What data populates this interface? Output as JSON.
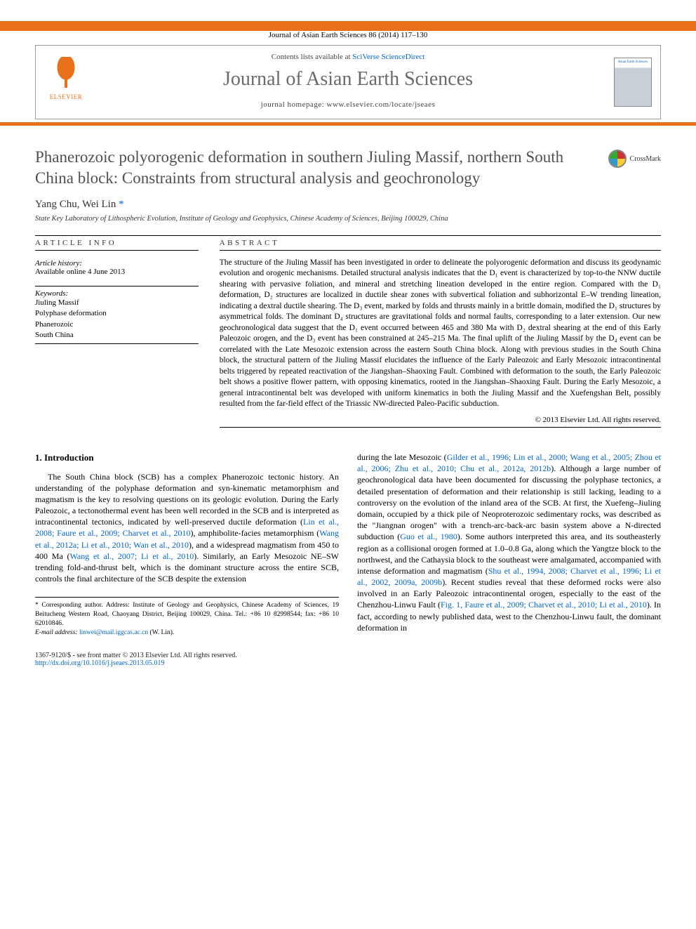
{
  "citation": "Journal of Asian Earth Sciences 86 (2014) 117–130",
  "header": {
    "contents_prefix": "Contents lists available at ",
    "contents_link": "SciVerse ScienceDirect",
    "journal_name": "Journal of Asian Earth Sciences",
    "homepage_label": "journal homepage: www.elsevier.com/locate/jseaes",
    "publisher": "ELSEVIER",
    "thumb_label": "Asian Earth Sciences"
  },
  "title": "Phanerozoic polyorogenic deformation in southern Jiuling Massif, northern South China block: Constraints from structural analysis and geochronology",
  "crossmark": "CrossMark",
  "authors": "Yang Chu, Wei Lin",
  "author_mark": "*",
  "affiliation": "State Key Laboratory of Lithospheric Evolution, Institute of Geology and Geophysics, Chinese Academy of Sciences, Beijing 100029, China",
  "article_info": {
    "label": "ARTICLE INFO",
    "history_label": "Article history:",
    "history_text": "Available online 4 June 2013",
    "keywords_label": "Keywords:",
    "keywords": [
      "Jiuling Massif",
      "Polyphase deformation",
      "Phanerozoic",
      "South China"
    ]
  },
  "abstract": {
    "label": "ABSTRACT",
    "text": "The structure of the Jiuling Massif has been investigated in order to delineate the polyorogenic deformation and discuss its geodynamic evolution and orogenic mechanisms. Detailed structural analysis indicates that the D₁ event is characterized by top-to-the NNW ductile shearing with pervasive foliation, and mineral and stretching lineation developed in the entire region. Compared with the D₁ deformation, D₂ structures are localized in ductile shear zones with subvertical foliation and subhorizontal E–W trending lineation, indicating a dextral ductile shearing. The D₃ event, marked by folds and thrusts mainly in a brittle domain, modified the D₁ structures by asymmetrical folds. The dominant D₄ structures are gravitational folds and normal faults, corresponding to a later extension. Our new geochronological data suggest that the D₁ event occurred between 465 and 380 Ma with D₂ dextral shearing at the end of this Early Paleozoic orogen, and the D₃ event has been constrained at 245–215 Ma. The final uplift of the Jiuling Massif by the D₄ event can be correlated with the Late Mesozoic extension across the eastern South China block. Along with previous studies in the South China block, the structural pattern of the Jiuling Massif elucidates the influence of the Early Paleozoic and Early Mesozoic intracontinental belts triggered by repeated reactivation of the Jiangshan–Shaoxing Fault. Combined with deformation to the south, the Early Paleozoic belt shows a positive flower pattern, with opposing kinematics, rooted in the Jiangshan–Shaoxing Fault. During the Early Mesozoic, a general intracontinental belt was developed with uniform kinematics in both the Jiuling Massif and the Xuefengshan Belt, possibly resulted from the far-field effect of the Triassic NW-directed Paleo-Pacific subduction.",
    "copyright": "© 2013 Elsevier Ltd. All rights reserved."
  },
  "intro": {
    "heading": "1. Introduction",
    "col1_part1": "The South China block (SCB) has a complex Phanerozoic tectonic history. An understanding of the polyphase deformation and syn-kinematic metamorphism and magmatism is the key to resolving questions on its geologic evolution. During the Early Paleozoic, a tectonothermal event has been well recorded in the SCB and is interpreted as intracontinental tectonics, indicated by well-preserved ductile deformation (",
    "col1_ref1": "Lin et al., 2008; Faure et al., 2009; Charvet et al., 2010",
    "col1_part2": "), amphibolite-facies metamorphism (",
    "col1_ref2": "Wang et al., 2012a; Li et al., 2010; Wan et al., 2010",
    "col1_part3": "), and a widespread magmatism from 450 to 400 Ma (",
    "col1_ref3": "Wang et al., 2007; Li et al., 2010",
    "col1_part4": "). Similarly, an Early Mesozoic NE–SW trending fold-and-thrust belt, which is the dominant structure across the entire SCB, controls the final architecture of the SCB despite the extension",
    "col2_part1": "during the late Mesozoic (",
    "col2_ref1": "Gilder et al., 1996; Lin et al., 2000; Wang et al., 2005; Zhou et al., 2006; Zhu et al., 2010; Chu et al., 2012a, 2012b",
    "col2_part2": "). Although a large number of geochronological data have been documented for discussing the polyphase tectonics, a detailed presentation of deformation and their relationship is still lacking, leading to a controversy on the evolution of the inland area of the SCB. At first, the Xuefeng–Jiuling domain, occupied by a thick pile of Neoproterozoic sedimentary rocks, was described as the \"Jiangnan orogen\" with a trench-arc-back-arc basin system above a N-directed subduction (",
    "col2_ref2": "Guo et al., 1980",
    "col2_part3": "). Some authors interpreted this area, and its southeasterly region as a collisional orogen formed at 1.0–0.8 Ga, along which the Yangtze block to the northwest, and the Cathaysia block to the southeast were amalgamated, accompanied with intense deformation and magmatism (",
    "col2_ref3": "Shu et al., 1994, 2008; Charvet et al., 1996; Li et al., 2002, 2009a, 2009b",
    "col2_part4": "). Recent studies reveal that these deformed rocks were also involved in an Early Paleozoic intracontinental orogen, especially to the east of the Chenzhou-Linwu Fault (",
    "col2_ref4": "Fig. 1, Faure et al., 2009; Charvet et al., 2010; Li et al., 2010",
    "col2_part5": "). In fact, according to newly published data, west to the Chenzhou-Linwu fault, the dominant deformation in"
  },
  "footnote": {
    "corr": "* Corresponding author. Address: Institute of Geology and Geophysics, Chinese Academy of Sciences, 19 Beitucheng Western Road, Chaoyang District, Beijing 100029, China. Tel.: +86 10 82998544; fax: +86 10 62010846.",
    "email_label": "E-mail address:",
    "email": "linwei@mail.iggcas.ac.cn",
    "email_who": "(W. Lin)."
  },
  "footer": {
    "issn": "1367-9120/$ - see front matter © 2013 Elsevier Ltd. All rights reserved.",
    "doi": "http://dx.doi.org/10.1016/j.jseaes.2013.05.019"
  },
  "colors": {
    "orange": "#e9711c",
    "link": "#0066cc",
    "title_gray": "#505050"
  }
}
